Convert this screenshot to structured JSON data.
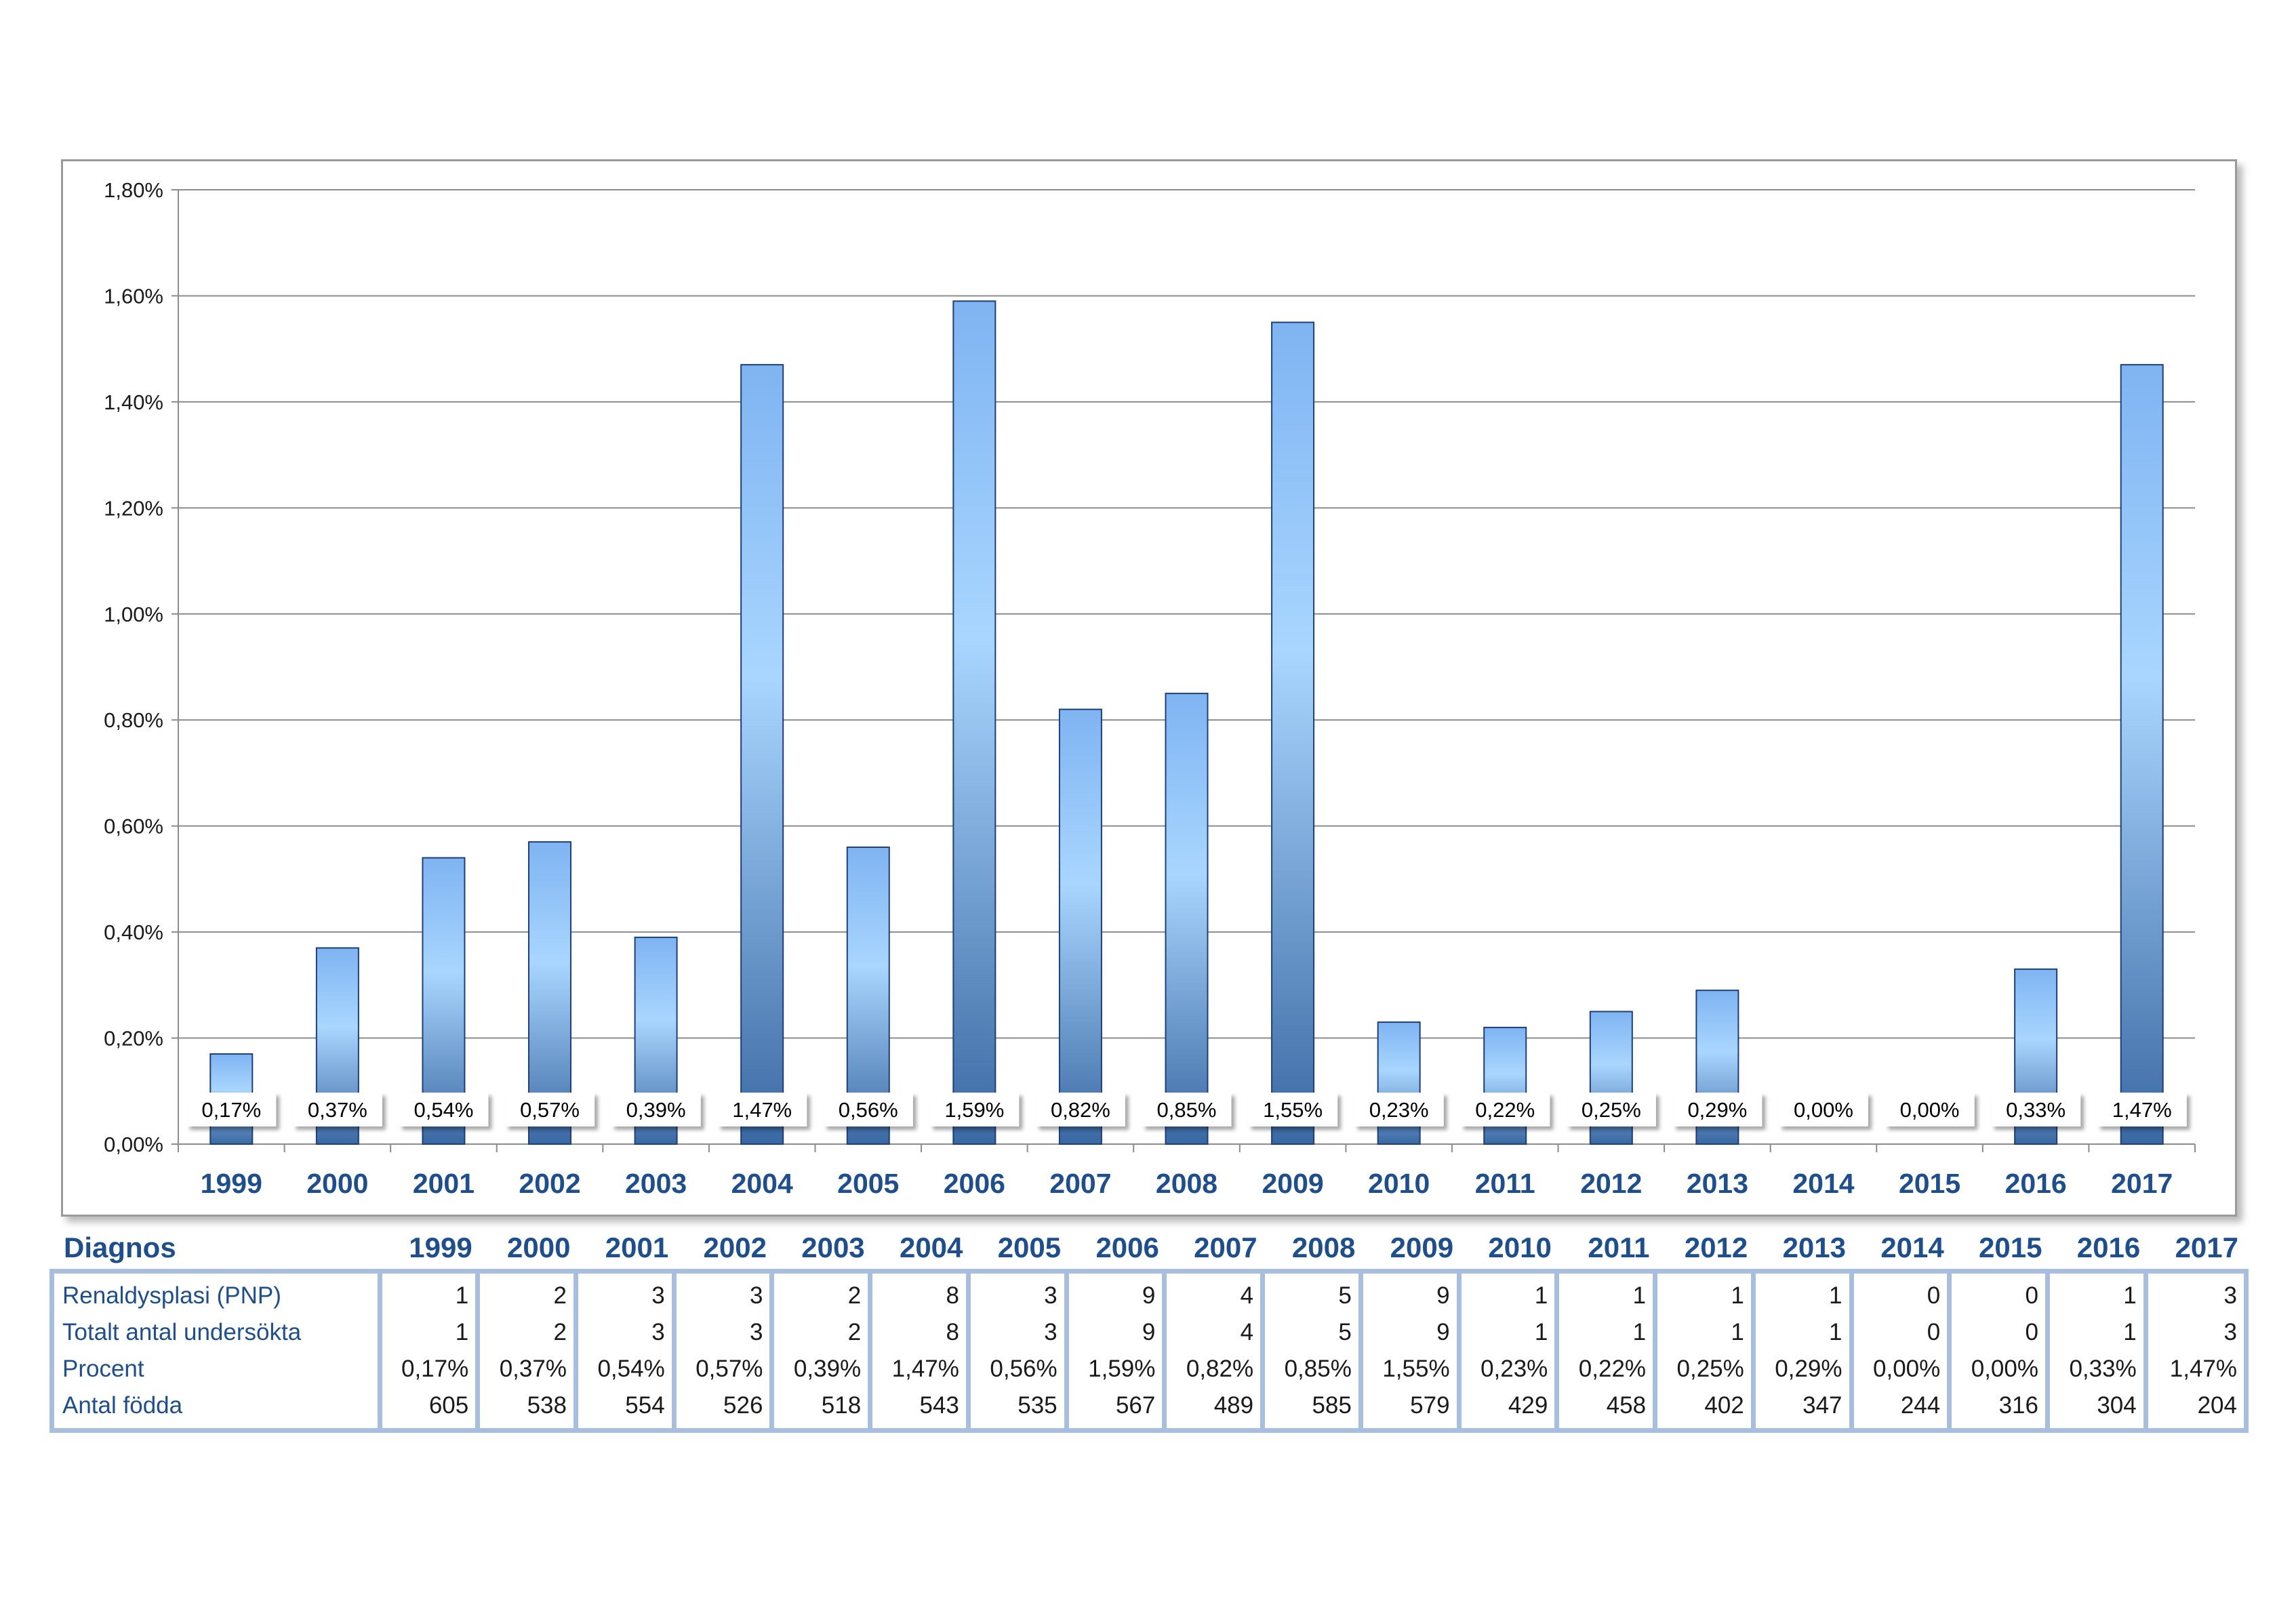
{
  "chart_data": {
    "type": "bar",
    "categories": [
      "1999",
      "2000",
      "2001",
      "2002",
      "2003",
      "2004",
      "2005",
      "2006",
      "2007",
      "2008",
      "2009",
      "2010",
      "2011",
      "2012",
      "2013",
      "2014",
      "2015",
      "2016",
      "2017"
    ],
    "values": [
      0.17,
      0.37,
      0.54,
      0.57,
      0.39,
      1.47,
      0.56,
      1.59,
      0.82,
      0.85,
      1.55,
      0.23,
      0.22,
      0.25,
      0.29,
      0.0,
      0.0,
      0.33,
      1.47
    ],
    "data_labels": [
      "0,17%",
      "0,37%",
      "0,54%",
      "0,57%",
      "0,39%",
      "1,47%",
      "0,56%",
      "1,59%",
      "0,82%",
      "0,85%",
      "1,55%",
      "0,23%",
      "0,22%",
      "0,25%",
      "0,29%",
      "0,00%",
      "0,00%",
      "0,33%",
      "1,47%"
    ],
    "ylim": [
      0,
      1.8
    ],
    "yticks": [
      0,
      0.2,
      0.4,
      0.6,
      0.8,
      1.0,
      1.2,
      1.4,
      1.6,
      1.8
    ],
    "ytick_labels": [
      "0,00%",
      "0,20%",
      "0,40%",
      "0,60%",
      "0,80%",
      "1,00%",
      "1,20%",
      "1,40%",
      "1,60%",
      "1,80%"
    ],
    "title": "",
    "xlabel": "",
    "ylabel": "",
    "grid": true,
    "colors": {
      "bar_light": "#a6d4ff",
      "bar_mid": "#7fb6f0",
      "bar_dark": "#3c6aa3",
      "bar_outline": "#1f3f78",
      "category_text": "#1f4e8c",
      "grid": "#8c8c8c"
    }
  },
  "table": {
    "header_label": "Diagnos",
    "years": [
      "1999",
      "2000",
      "2001",
      "2002",
      "2003",
      "2004",
      "2005",
      "2006",
      "2007",
      "2008",
      "2009",
      "2010",
      "2011",
      "2012",
      "2013",
      "2014",
      "2015",
      "2016",
      "2017"
    ],
    "rows": [
      {
        "label": "Renaldysplasi (PNP)",
        "values": [
          "1",
          "2",
          "3",
          "3",
          "2",
          "8",
          "3",
          "9",
          "4",
          "5",
          "9",
          "1",
          "1",
          "1",
          "1",
          "0",
          "0",
          "1",
          "3"
        ]
      },
      {
        "label": "Totalt antal undersökta",
        "values": [
          "1",
          "2",
          "3",
          "3",
          "2",
          "8",
          "3",
          "9",
          "4",
          "5",
          "9",
          "1",
          "1",
          "1",
          "1",
          "0",
          "0",
          "1",
          "3"
        ]
      },
      {
        "label": "Procent",
        "values": [
          "0,17%",
          "0,37%",
          "0,54%",
          "0,57%",
          "0,39%",
          "1,47%",
          "0,56%",
          "1,59%",
          "0,82%",
          "0,85%",
          "1,55%",
          "0,23%",
          "0,22%",
          "0,25%",
          "0,29%",
          "0,00%",
          "0,00%",
          "0,33%",
          "1,47%"
        ]
      },
      {
        "label": "Antal födda",
        "values": [
          "605",
          "538",
          "554",
          "526",
          "518",
          "543",
          "535",
          "567",
          "489",
          "585",
          "579",
          "429",
          "458",
          "402",
          "347",
          "244",
          "316",
          "304",
          "204"
        ]
      }
    ],
    "colors": {
      "header_text": "#1f4e8c",
      "border": "#a7bede"
    }
  }
}
